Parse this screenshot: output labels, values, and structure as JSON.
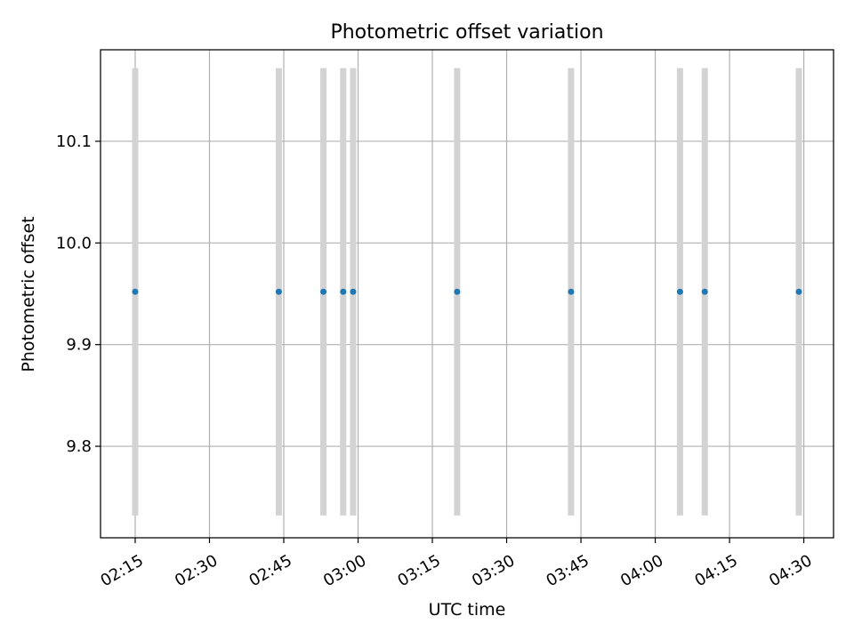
{
  "chart_data": {
    "type": "scatter",
    "title": "Photometric offset variation",
    "xlabel": "UTC time",
    "ylabel": "Photometric offset",
    "x_ticks": [
      "02:15",
      "02:30",
      "02:45",
      "03:00",
      "03:15",
      "03:30",
      "03:45",
      "04:00",
      "04:15",
      "04:30"
    ],
    "y_ticks": [
      "9.8",
      "9.9",
      "10.0",
      "10.1"
    ],
    "xlim": [
      "02:08",
      "04:36"
    ],
    "ylim": [
      9.71,
      10.19
    ],
    "grid": true,
    "error_bar_color": "#d3d3d3",
    "point_color": "#1f77b4",
    "points": [
      {
        "time": "02:15",
        "value": 9.952,
        "err": 0.22
      },
      {
        "time": "02:44",
        "value": 9.952,
        "err": 0.22
      },
      {
        "time": "02:53",
        "value": 9.952,
        "err": 0.22
      },
      {
        "time": "02:57",
        "value": 9.952,
        "err": 0.22
      },
      {
        "time": "02:59",
        "value": 9.952,
        "err": 0.22
      },
      {
        "time": "03:20",
        "value": 9.952,
        "err": 0.22
      },
      {
        "time": "03:43",
        "value": 9.952,
        "err": 0.22
      },
      {
        "time": "04:05",
        "value": 9.952,
        "err": 0.22
      },
      {
        "time": "04:10",
        "value": 9.952,
        "err": 0.22
      },
      {
        "time": "04:29",
        "value": 9.952,
        "err": 0.22
      }
    ]
  }
}
